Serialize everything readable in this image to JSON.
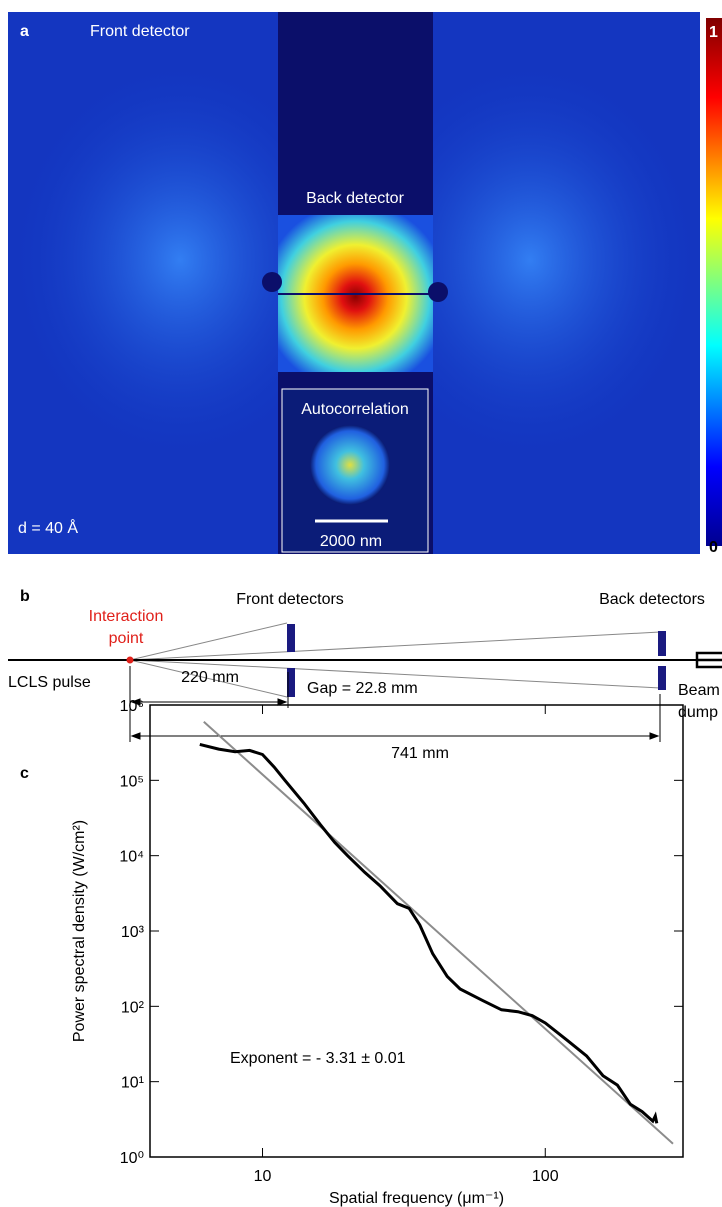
{
  "panel_a": {
    "label": "a",
    "front": "Front detector",
    "back": "Back detector",
    "inset": "Autocorrelation",
    "scale": "2000 nm",
    "distance": "d = 40 Å",
    "colorbar_max": "1",
    "colorbar_min": "0"
  },
  "panel_b": {
    "label": "b",
    "interaction": [
      "Interaction",
      "point"
    ],
    "front": "Front detectors",
    "back": "Back detectors",
    "pulse": "LCLS pulse",
    "front_distance": "220 mm",
    "gap": "Gap = 22.8 mm",
    "back_distance": "741 mm",
    "dump": [
      "Beam",
      "dump"
    ]
  },
  "chart_data": {
    "type": "line",
    "panel_label": "c",
    "xlabel": "Spatial frequency (μm⁻¹)",
    "ylabel": "Power spectral density (W/cm²)",
    "annotation": "Exponent = - 3.31 ± 0.01",
    "xscale": "log",
    "yscale": "log",
    "xlim": [
      4,
      307
    ],
    "ylim": [
      1,
      1000000
    ],
    "xticks": [
      10,
      100
    ],
    "yticks": [
      {
        "value": 1,
        "label": "10⁰"
      },
      {
        "value": 10,
        "label": "10¹"
      },
      {
        "value": 100,
        "label": "10²"
      },
      {
        "value": 1000,
        "label": "10³"
      },
      {
        "value": 10000,
        "label": "10⁴"
      },
      {
        "value": 100000,
        "label": "10⁵"
      },
      {
        "value": 1000000,
        "label": "10⁶"
      }
    ],
    "series": [
      {
        "color": "#000000",
        "x": [
          6,
          7,
          8,
          9,
          10,
          11,
          12,
          14,
          16,
          18,
          20,
          23,
          26,
          30,
          33,
          36,
          40,
          45,
          50,
          60,
          70,
          80,
          90,
          100,
          120,
          140,
          160,
          180,
          200,
          220,
          240,
          245,
          248
        ],
        "values": [
          300000,
          260000,
          240000,
          250000,
          220000,
          150000,
          100000,
          50000,
          26000,
          15000,
          10000,
          6000,
          4000,
          2300,
          2000,
          1200,
          500,
          250,
          170,
          120,
          90,
          85,
          75,
          60,
          35,
          22,
          12,
          9,
          5,
          4,
          3,
          3.5,
          2.8
        ]
      },
      {
        "color": "#8c8c8c",
        "x": [
          6.2,
          283
        ],
        "values": [
          600000,
          1.5
        ]
      }
    ]
  }
}
